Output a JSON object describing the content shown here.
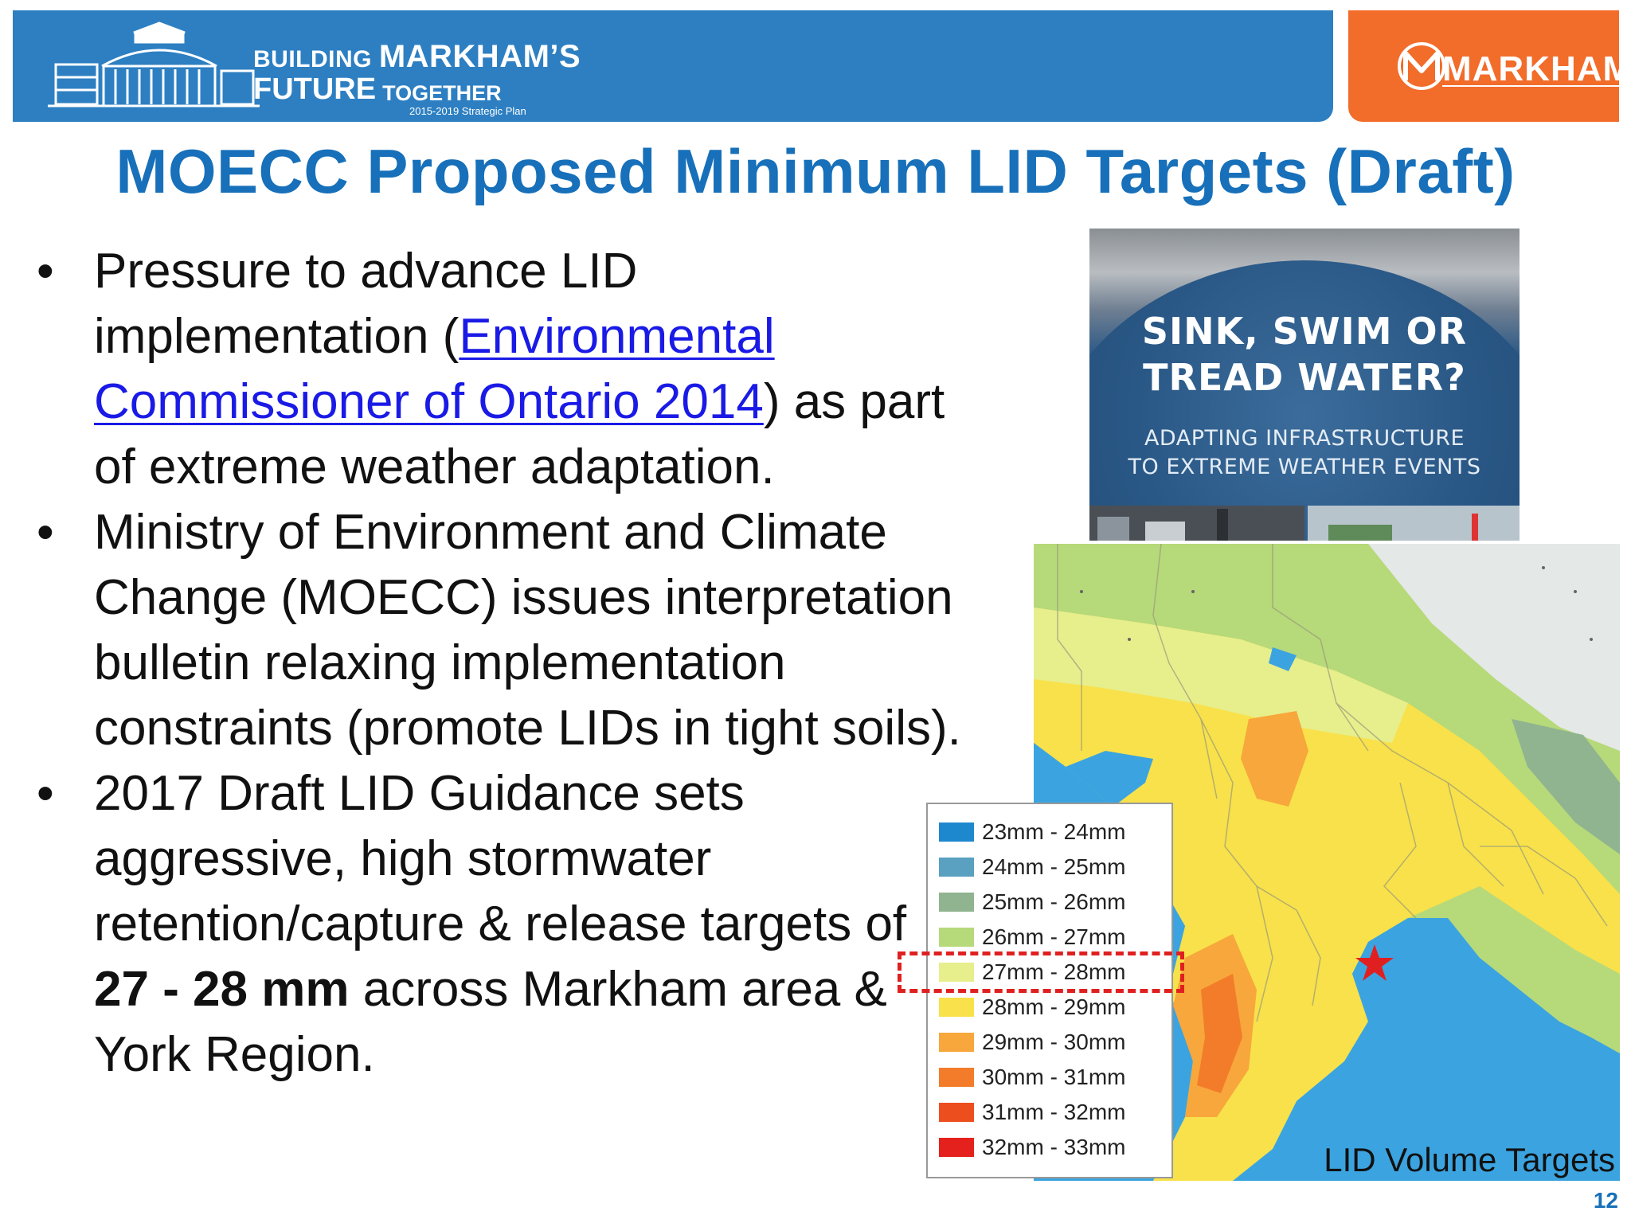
{
  "header": {
    "brand_line1_a": "BUILDING ",
    "brand_line1_b": "MARKHAM’S",
    "brand_line2_a": "FUTURE",
    "brand_line2_b": "TOGETHER",
    "brand_plan": "2015-2019 Strategic Plan",
    "logo_text": "MARKHAM"
  },
  "slide": {
    "title": "MOECC Proposed Minimum LID Targets (Draft)",
    "page_number": "12"
  },
  "bullets": [
    {
      "part1": "Pressure to advance LID implementation (",
      "link": "Environmental Commissioner of Ontario 2014",
      "part2": ") as part of extreme weather adaptation."
    },
    {
      "text": "Ministry of Environment and Climate Change (MOECC) issues interpretation bulletin relaxing implementation constraints (promote LIDs in tight soils)."
    },
    {
      "part1": "2017 Draft LID Guidance sets aggressive, high stormwater retention/capture & release targets of ",
      "bold": "27 - 28 mm",
      "part2": " across Markham area & York Region."
    }
  ],
  "report_cover": {
    "title_line1": "SINK, SWIM OR",
    "title_line2": "TREAD WATER?",
    "subtitle_line1": "ADAPTING INFRASTRUCTURE",
    "subtitle_line2": "TO EXTREME WEATHER EVENTS"
  },
  "map": {
    "caption": "LID Volume Targets",
    "highlighted_range": "27mm - 28mm",
    "legend": [
      {
        "label": "23mm - 24mm",
        "color": "#1e88cf"
      },
      {
        "label": "24mm - 25mm",
        "color": "#5aa0c0"
      },
      {
        "label": "25mm - 26mm",
        "color": "#8fb48f"
      },
      {
        "label": "26mm - 27mm",
        "color": "#b6d97a"
      },
      {
        "label": "27mm - 28mm",
        "color": "#e7ee8c"
      },
      {
        "label": "28mm - 29mm",
        "color": "#f8e14a"
      },
      {
        "label": "29mm - 30mm",
        "color": "#f7a73b"
      },
      {
        "label": "30mm - 31mm",
        "color": "#f27c2a"
      },
      {
        "label": "31mm - 32mm",
        "color": "#ed4e1e"
      },
      {
        "label": "32mm - 33mm",
        "color": "#e4211c"
      }
    ],
    "water_color": "#3ba4e0",
    "markham_marker_color": "#e02020"
  }
}
